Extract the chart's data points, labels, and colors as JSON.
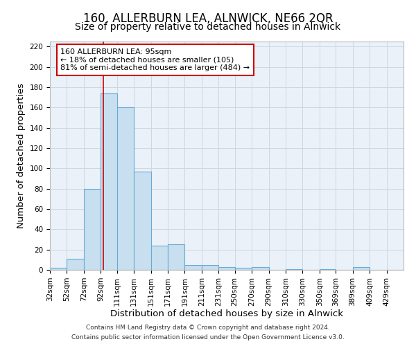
{
  "title": "160, ALLERBURN LEA, ALNWICK, NE66 2QR",
  "subtitle": "Size of property relative to detached houses in Alnwick",
  "xlabel": "Distribution of detached houses by size in Alnwick",
  "ylabel": "Number of detached properties",
  "bar_color": "#c8dff0",
  "bar_edge_color": "#6aaad4",
  "grid_color": "#ccd8e4",
  "background_color": "#eaf1f8",
  "bin_labels": [
    "32sqm",
    "52sqm",
    "72sqm",
    "92sqm",
    "111sqm",
    "131sqm",
    "151sqm",
    "171sqm",
    "191sqm",
    "211sqm",
    "231sqm",
    "250sqm",
    "270sqm",
    "290sqm",
    "310sqm",
    "330sqm",
    "350sqm",
    "369sqm",
    "389sqm",
    "409sqm",
    "429sqm"
  ],
  "bar_heights": [
    2,
    11,
    80,
    174,
    160,
    97,
    24,
    25,
    5,
    5,
    3,
    2,
    3,
    0,
    1,
    0,
    1,
    0,
    3,
    0,
    0
  ],
  "bin_edges": [
    32,
    52,
    72,
    92,
    111,
    131,
    151,
    171,
    191,
    211,
    231,
    250,
    270,
    290,
    310,
    330,
    350,
    369,
    389,
    409,
    429,
    449
  ],
  "ylim": [
    0,
    225
  ],
  "yticks": [
    0,
    20,
    40,
    60,
    80,
    100,
    120,
    140,
    160,
    180,
    200,
    220
  ],
  "property_line_x": 95,
  "property_line_color": "#cc0000",
  "annotation_text": "160 ALLERBURN LEA: 95sqm\n← 18% of detached houses are smaller (105)\n81% of semi-detached houses are larger (484) →",
  "annotation_box_color": "#ffffff",
  "annotation_box_edge_color": "#cc0000",
  "footer_line1": "Contains HM Land Registry data © Crown copyright and database right 2024.",
  "footer_line2": "Contains public sector information licensed under the Open Government Licence v3.0.",
  "title_fontsize": 12,
  "subtitle_fontsize": 10,
  "tick_fontsize": 7.5,
  "label_fontsize": 9.5,
  "annotation_fontsize": 8
}
